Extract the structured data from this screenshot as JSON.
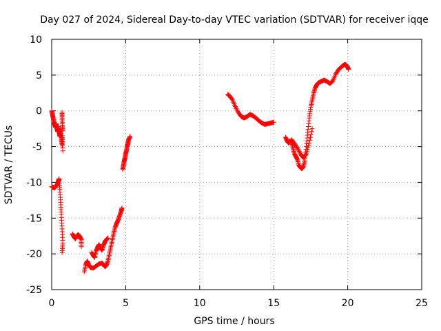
{
  "chart_data": {
    "type": "scatter",
    "title": "Day 027 of 2024, Sidereal Day-to-day VTEC variation (SDTVAR) for receiver iqqe",
    "xlabel": "GPS time / hours",
    "ylabel": "SDTVAR / TECUs",
    "xlim": [
      0,
      25
    ],
    "ylim": [
      -25,
      10
    ],
    "xticks": [
      0,
      5,
      10,
      15,
      20,
      25
    ],
    "yticks": [
      -25,
      -20,
      -15,
      -10,
      -5,
      0,
      5,
      10
    ],
    "grid": true,
    "marker": "+",
    "series": [
      {
        "name": "SDTVAR",
        "color": "#ff0000",
        "segments": [
          [
            [
              0.0,
              0.0
            ],
            [
              0.05,
              -0.5
            ],
            [
              0.1,
              -1.0
            ],
            [
              0.15,
              -1.6
            ],
            [
              0.2,
              -1.9
            ],
            [
              0.25,
              -2.3
            ],
            [
              0.3,
              -1.8
            ],
            [
              0.35,
              -2.5
            ],
            [
              0.4,
              -2.9
            ],
            [
              0.45,
              -2.2
            ],
            [
              0.5,
              -3.0
            ],
            [
              0.55,
              -3.6
            ],
            [
              0.6,
              -2.6
            ],
            [
              0.65,
              -4.0
            ],
            [
              0.7,
              -4.8
            ],
            [
              0.72,
              -3.5
            ],
            [
              0.75,
              -5.6
            ]
          ],
          [
            [
              0.0,
              -10.6
            ],
            [
              0.1,
              -10.7
            ],
            [
              0.2,
              -10.8
            ],
            [
              0.3,
              -10.5
            ],
            [
              0.4,
              -10.2
            ],
            [
              0.45,
              -9.8
            ],
            [
              0.5,
              -9.5
            ],
            [
              0.55,
              -11.0
            ],
            [
              0.6,
              -12.8
            ],
            [
              0.65,
              -14.5
            ],
            [
              0.7,
              -16.5
            ],
            [
              0.75,
              -18.5
            ],
            [
              0.7,
              -19.8
            ]
          ],
          [
            [
              0.7,
              -0.2
            ],
            [
              0.7,
              -1.0
            ],
            [
              0.72,
              -2.0
            ],
            [
              0.75,
              -2.8
            ]
          ],
          [
            [
              1.4,
              -17.2
            ],
            [
              1.5,
              -17.6
            ],
            [
              1.6,
              -17.9
            ],
            [
              1.7,
              -17.5
            ],
            [
              1.8,
              -17.3
            ],
            [
              1.9,
              -17.6
            ],
            [
              2.0,
              -18.0
            ],
            [
              2.0,
              -19.0
            ]
          ],
          [
            [
              2.2,
              -22.5
            ],
            [
              2.3,
              -21.5
            ],
            [
              2.4,
              -21.0
            ],
            [
              2.5,
              -21.5
            ],
            [
              2.6,
              -21.9
            ],
            [
              2.8,
              -22.0
            ],
            [
              3.0,
              -21.7
            ],
            [
              3.2,
              -21.4
            ],
            [
              3.4,
              -21.3
            ],
            [
              3.5,
              -21.5
            ],
            [
              3.6,
              -21.8
            ],
            [
              3.7,
              -21.6
            ],
            [
              3.8,
              -21.0
            ],
            [
              3.9,
              -20.0
            ],
            [
              4.0,
              -19.0
            ],
            [
              4.1,
              -18.0
            ],
            [
              4.2,
              -17.0
            ],
            [
              4.3,
              -16.2
            ],
            [
              4.4,
              -15.7
            ],
            [
              4.5,
              -15.2
            ],
            [
              4.6,
              -14.6
            ],
            [
              4.7,
              -14.0
            ],
            [
              4.75,
              -13.6
            ]
          ],
          [
            [
              2.7,
              -19.8
            ],
            [
              2.8,
              -20.2
            ],
            [
              2.9,
              -20.5
            ],
            [
              3.0,
              -19.6
            ],
            [
              3.1,
              -19.1
            ],
            [
              3.2,
              -18.7
            ],
            [
              3.3,
              -19.2
            ],
            [
              3.4,
              -19.5
            ],
            [
              3.5,
              -18.8
            ],
            [
              3.6,
              -18.3
            ],
            [
              3.7,
              -18.0
            ],
            [
              3.8,
              -17.8
            ]
          ],
          [
            [
              4.8,
              -8.2
            ],
            [
              4.85,
              -7.6
            ],
            [
              4.9,
              -7.0
            ],
            [
              4.95,
              -6.6
            ],
            [
              5.0,
              -6.0
            ],
            [
              5.05,
              -5.6
            ],
            [
              5.1,
              -5.0
            ],
            [
              5.15,
              -4.5
            ],
            [
              5.2,
              -4.0
            ],
            [
              5.3,
              -3.6
            ]
          ],
          [
            [
              11.9,
              2.3
            ],
            [
              12.0,
              2.1
            ],
            [
              12.2,
              1.6
            ],
            [
              12.4,
              0.6
            ],
            [
              12.6,
              -0.2
            ],
            [
              12.8,
              -0.8
            ],
            [
              13.0,
              -1.0
            ],
            [
              13.2,
              -0.8
            ],
            [
              13.4,
              -0.5
            ],
            [
              13.6,
              -0.7
            ],
            [
              13.8,
              -1.0
            ],
            [
              14.0,
              -1.4
            ],
            [
              14.2,
              -1.7
            ],
            [
              14.4,
              -1.9
            ],
            [
              14.6,
              -1.8
            ],
            [
              14.8,
              -1.7
            ],
            [
              15.0,
              -1.6
            ]
          ],
          [
            [
              15.8,
              -3.7
            ],
            [
              15.9,
              -4.2
            ],
            [
              16.0,
              -4.5
            ],
            [
              16.1,
              -4.2
            ],
            [
              16.2,
              -4.4
            ],
            [
              16.3,
              -5.2
            ],
            [
              16.4,
              -6.0
            ],
            [
              16.5,
              -6.4
            ],
            [
              16.6,
              -6.8
            ],
            [
              16.7,
              -7.6
            ],
            [
              16.8,
              -7.9
            ],
            [
              16.9,
              -8.1
            ],
            [
              17.0,
              -7.8
            ],
            [
              17.1,
              -7.0
            ],
            [
              17.2,
              -5.0
            ],
            [
              17.3,
              -3.0
            ],
            [
              17.4,
              -1.0
            ],
            [
              17.5,
              0.5
            ],
            [
              17.6,
              1.5
            ],
            [
              17.7,
              2.5
            ],
            [
              17.8,
              3.2
            ],
            [
              17.9,
              3.6
            ],
            [
              18.0,
              3.9
            ],
            [
              18.2,
              4.1
            ],
            [
              18.4,
              4.3
            ],
            [
              18.6,
              4.1
            ],
            [
              18.8,
              3.8
            ],
            [
              19.0,
              4.2
            ],
            [
              19.2,
              5.2
            ],
            [
              19.4,
              5.8
            ],
            [
              19.6,
              6.2
            ],
            [
              19.8,
              6.5
            ],
            [
              19.9,
              6.4
            ],
            [
              20.0,
              6.1
            ],
            [
              20.05,
              5.8
            ]
          ],
          [
            [
              16.2,
              -4.0
            ],
            [
              16.4,
              -4.6
            ],
            [
              16.6,
              -5.2
            ],
            [
              16.8,
              -6.0
            ],
            [
              17.0,
              -6.6
            ],
            [
              17.2,
              -6.0
            ],
            [
              17.4,
              -4.5
            ],
            [
              17.6,
              -2.5
            ]
          ]
        ]
      }
    ]
  }
}
